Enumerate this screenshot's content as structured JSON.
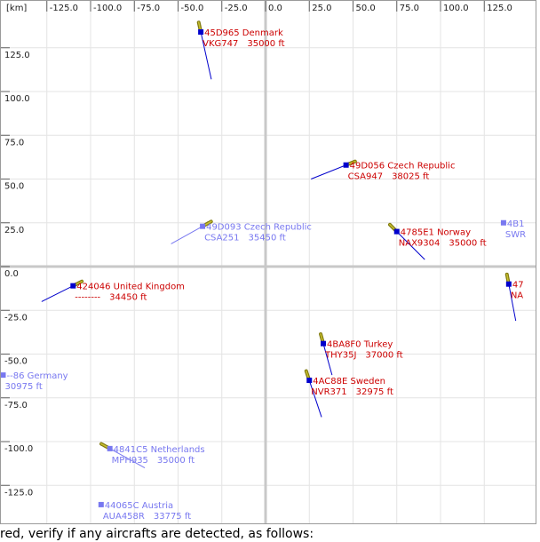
{
  "radar": {
    "unit_label": "[km]",
    "x_ticks": [
      "-125.0",
      "-100.0",
      "-75.0",
      "-50.0",
      "-25.0",
      "0.0",
      "25.0",
      "50.0",
      "75.0",
      "100.0",
      "125.0"
    ],
    "y_ticks": [
      "125.0",
      "100.0",
      "75.0",
      "50.0",
      "25.0",
      "0.0",
      "-25.0",
      "-50.0",
      "-75.0",
      "-100.0",
      "-125.0"
    ],
    "colors": {
      "active": "#cc0000",
      "inactive": "#7878f0",
      "marker": "#0000cc",
      "vector": "#0000cc",
      "trail": "#807a10",
      "grid": "#e4e4e4",
      "axis": "#c8c8c8"
    },
    "aircraft": [
      {
        "id": "45D965",
        "country": "Denmark",
        "callsign": "VKG747",
        "altitude": "35000 ft",
        "x": -37,
        "y": 134,
        "active": true,
        "heading_dx": 6,
        "heading_dy": -27
      },
      {
        "id": "49D056",
        "country": "Czech Republic",
        "callsign": "CSA947",
        "altitude": "38025 ft",
        "x": 46,
        "y": 58,
        "active": true,
        "heading_dx": -20,
        "heading_dy": -8
      },
      {
        "id": "49D093",
        "country": "Czech Republic",
        "callsign": "CSA251",
        "altitude": "35450 ft",
        "x": -36,
        "y": 23,
        "active": false,
        "heading_dx": -18,
        "heading_dy": -10
      },
      {
        "id": "4785E1",
        "country": "Norway",
        "callsign": "NAX9304",
        "altitude": "35000 ft",
        "x": 75,
        "y": 20,
        "active": true,
        "heading_dx": 16,
        "heading_dy": -16
      },
      {
        "id": "4B1",
        "country": "",
        "callsign": "SWR",
        "altitude": "",
        "x": 136,
        "y": 25,
        "active": false,
        "heading_dx": 0,
        "heading_dy": 0
      },
      {
        "id": "424046",
        "country": "United Kingdom",
        "callsign": "--------",
        "altitude": "34450 ft",
        "x": -110,
        "y": -11,
        "active": true,
        "heading_dx": -18,
        "heading_dy": -9
      },
      {
        "id": "47",
        "country": "",
        "callsign": "NA",
        "altitude": "",
        "x": 139,
        "y": -10,
        "active": true,
        "heading_dx": 4,
        "heading_dy": -21
      },
      {
        "id": "4BA8F0",
        "country": "Turkey",
        "callsign": "THY35J",
        "altitude": "37000 ft",
        "x": 33,
        "y": -44,
        "active": true,
        "heading_dx": 5,
        "heading_dy": -18
      },
      {
        "id": "--86",
        "country": "Germany",
        "callsign": "",
        "altitude": "30975 ft",
        "x": -150,
        "y": -62,
        "active": false,
        "heading_dx": 0,
        "heading_dy": 0
      },
      {
        "id": "4AC88E",
        "country": "Sweden",
        "callsign": "NVR371",
        "altitude": "32975 ft",
        "x": 25,
        "y": -65,
        "active": true,
        "heading_dx": 7,
        "heading_dy": -21
      },
      {
        "id": "4841C5",
        "country": "Netherlands",
        "callsign": "MPH935",
        "altitude": "35000 ft",
        "x": -89,
        "y": -104,
        "active": false,
        "heading_dx": 20,
        "heading_dy": -11
      },
      {
        "id": "44065C",
        "country": "Austria",
        "callsign": "AUA458R",
        "altitude": "33775 ft",
        "x": -94,
        "y": -136,
        "active": false,
        "heading_dx": 0,
        "heading_dy": 0
      }
    ]
  },
  "caption": "red, verify if any aircrafts are detected, as follows:"
}
